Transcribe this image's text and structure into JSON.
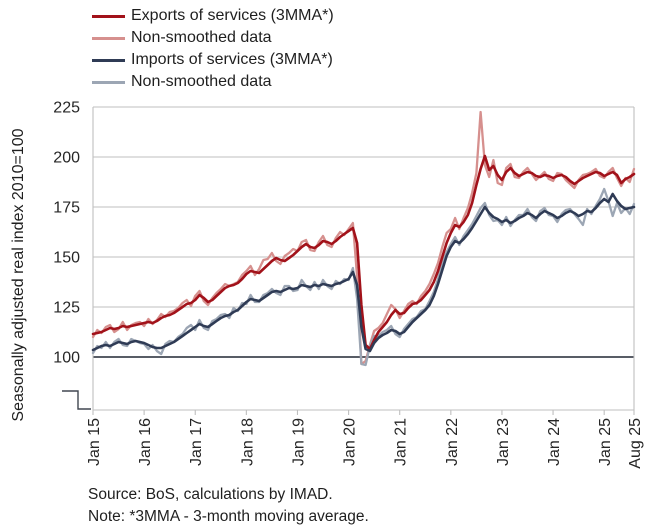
{
  "legend": {
    "entries": [
      {
        "label": "Exports of services (3MMA*)"
      },
      {
        "label": "Non-smoothed data"
      },
      {
        "label": "Imports of services (3MMA*)"
      },
      {
        "label": "Non-smoothed data"
      }
    ]
  },
  "footer": {
    "source": "Source: BoS, calculations by IMAD.",
    "note": "Note: *3MMA - 3-month moving average."
  },
  "colors": {
    "grid": "#BFBFBF",
    "baseline_100": "#404650",
    "axis": "#BFBFBF",
    "tick_text": "#262626"
  },
  "chart_data": {
    "type": "line",
    "title": "",
    "ylabel": "Seasonally adjusted real index 2010=100",
    "xlabel": "",
    "x_start": "Jan 2015",
    "x_end": "Aug 2025",
    "n_points": 128,
    "ylim": [
      100,
      225
    ],
    "yticks": [
      100,
      125,
      150,
      175,
      200,
      225
    ],
    "xtick_labels": [
      "Jan 15",
      "Jan 16",
      "Jan 17",
      "Jan 18",
      "Jan 19",
      "Jan 20",
      "Jan 21",
      "Jan 22",
      "Jan 23",
      "Jan 24",
      "Jan 25",
      "Aug 25"
    ],
    "xtick_month_index": [
      0,
      12,
      24,
      36,
      48,
      60,
      72,
      84,
      96,
      108,
      120,
      127
    ],
    "grid": true,
    "axis_break_at_100": true,
    "legend_position": "top-left",
    "series": [
      {
        "id": "exports-3mma",
        "name": "Exports of services (3MMA*)",
        "color": "#A2121A",
        "width": 2.6,
        "values": [
          111.5,
          112,
          112.5,
          113.5,
          114.5,
          114,
          114.5,
          115.5,
          115,
          115.5,
          116,
          116.5,
          117,
          117.5,
          117,
          118,
          119.5,
          120.5,
          121,
          122,
          123.5,
          125,
          126.5,
          127,
          128.5,
          131,
          129.5,
          127.5,
          128.5,
          130.5,
          132.5,
          134.5,
          135.5,
          136,
          137,
          139,
          141.5,
          143,
          142.5,
          142,
          144,
          146,
          148,
          149.5,
          148.5,
          148,
          149.5,
          151,
          153,
          155,
          156.5,
          155,
          154.5,
          156,
          158,
          157.5,
          156.5,
          158,
          160,
          161.5,
          163,
          164.5,
          157,
          126,
          106,
          104,
          108.5,
          112.5,
          115,
          117.5,
          121,
          123.5,
          121.5,
          122,
          124.5,
          126.5,
          127,
          128.5,
          131,
          133.5,
          137.5,
          143,
          150,
          157,
          162,
          166,
          165,
          167.5,
          171,
          177,
          186,
          194,
          200.5,
          193.5,
          195.5,
          191,
          188.5,
          192.5,
          194.5,
          192,
          190.5,
          191.5,
          192.5,
          192,
          190.5,
          190,
          191,
          190.5,
          189.5,
          190.5,
          191,
          190,
          188,
          186.5,
          188,
          189.5,
          190.5,
          191.5,
          192.5,
          192,
          190.5,
          191.5,
          192.5,
          191,
          187,
          189,
          190,
          191.5
        ]
      },
      {
        "id": "exports-non-smoothed",
        "name": "Non-smoothed data",
        "color": "#D6908E",
        "width": 2.3,
        "values": [
          110,
          113.5,
          112,
          115,
          116,
          112.5,
          114,
          117.5,
          113.5,
          116,
          117,
          117.5,
          115.5,
          119,
          116.5,
          118.5,
          121.5,
          120,
          122.5,
          123,
          124.5,
          127,
          128.5,
          125.5,
          130.5,
          133,
          128,
          126,
          129.5,
          132,
          134,
          136.5,
          135.5,
          136.5,
          137.5,
          141,
          143,
          145.5,
          141,
          144,
          148.5,
          149,
          152,
          148,
          146.5,
          150.5,
          152,
          154,
          153,
          157.5,
          158.5,
          153.5,
          153,
          157.5,
          160.5,
          156,
          155,
          159.5,
          162.5,
          161,
          164,
          167,
          140,
          96.5,
          98,
          106,
          113,
          114.5,
          117,
          121.5,
          126,
          124,
          119.5,
          123,
          126.5,
          128,
          126.5,
          130.5,
          133,
          136.5,
          141.5,
          147,
          155,
          162,
          164,
          169.5,
          164,
          169.5,
          174.5,
          182,
          192,
          222.5,
          196,
          190,
          198.5,
          187,
          186,
          194.5,
          196.5,
          190,
          189.5,
          192.5,
          194.5,
          191.5,
          188.5,
          190.5,
          192.5,
          189,
          188,
          192,
          191.5,
          188.5,
          186.5,
          184.5,
          188.5,
          191,
          191.5,
          192.5,
          194,
          190.5,
          189.5,
          192.5,
          194.5,
          189.5,
          185.5,
          189.5,
          187.5,
          194
        ]
      },
      {
        "id": "imports-3mma",
        "name": "Imports of services (3MMA*)",
        "color": "#2F3B55",
        "width": 2.6,
        "values": [
          103.5,
          104.5,
          105.5,
          106,
          105.5,
          106.5,
          107.5,
          107,
          106.5,
          107.5,
          108,
          107.5,
          107,
          106,
          105,
          104.5,
          104.5,
          105.5,
          106.5,
          107.5,
          109,
          110.5,
          112,
          113.5,
          115,
          116.5,
          115.5,
          115,
          116.5,
          118,
          119.5,
          120.5,
          121,
          122.5,
          123.5,
          125.5,
          127.5,
          129,
          128.5,
          128,
          129.5,
          131,
          132.5,
          133,
          132.5,
          133.5,
          134.5,
          134,
          134.5,
          136,
          135.5,
          135,
          136,
          135.5,
          136.5,
          136,
          135.5,
          136.5,
          137,
          138,
          139,
          142.5,
          136,
          115,
          104,
          103,
          107,
          109.5,
          111,
          112,
          113.5,
          113,
          111.5,
          112.5,
          115,
          117.5,
          119.5,
          121.5,
          123.5,
          126,
          130.5,
          136.5,
          143.5,
          150.5,
          155,
          158,
          157,
          159,
          161.5,
          164.5,
          168,
          171.5,
          175,
          172,
          170,
          169,
          167.5,
          168.5,
          167,
          168,
          169.5,
          170.5,
          172,
          171,
          169.5,
          171.5,
          173,
          172,
          171,
          169.5,
          170.5,
          172,
          173,
          172,
          170.5,
          171.5,
          173,
          172.5,
          174.5,
          177,
          179,
          177.5,
          181.5,
          178,
          175.5,
          174,
          174.5,
          175
        ]
      },
      {
        "id": "imports-non-smoothed",
        "name": "Non-smoothed data",
        "color": "#9CA6B4",
        "width": 2.3,
        "values": [
          102,
          105.5,
          104.5,
          107.5,
          104.5,
          107.5,
          109,
          106,
          105.5,
          109,
          108,
          107,
          106.5,
          104,
          106,
          103,
          101.5,
          106.5,
          108,
          107.5,
          110,
          111.5,
          114.5,
          116,
          113.5,
          118.5,
          114.5,
          113.5,
          118,
          119,
          121,
          121.5,
          119.5,
          124.5,
          123,
          127,
          126.5,
          131,
          127.5,
          127.5,
          131,
          132,
          134,
          132,
          131,
          135.5,
          135.5,
          133,
          133.5,
          138.5,
          135.5,
          133.5,
          137.5,
          134,
          138.5,
          135.5,
          134,
          138,
          136.5,
          139,
          138.5,
          144.5,
          129,
          96.5,
          96,
          105.5,
          110.5,
          110.5,
          112.5,
          113.5,
          115.5,
          111.5,
          110,
          114,
          116.5,
          119,
          120,
          123,
          124,
          128,
          132.5,
          139,
          146.5,
          152.5,
          156.5,
          160,
          156,
          160.5,
          163.5,
          166.5,
          170.5,
          174.5,
          177,
          171,
          168,
          168.5,
          166,
          170,
          165.5,
          168.5,
          171,
          171,
          174,
          170,
          168,
          173,
          174.5,
          171,
          170.5,
          167.5,
          171.5,
          173.5,
          174,
          171.5,
          169,
          166,
          174,
          171.5,
          175.5,
          179,
          184,
          178,
          170.5,
          177,
          172,
          174.5,
          171.5,
          176.5
        ]
      }
    ]
  }
}
